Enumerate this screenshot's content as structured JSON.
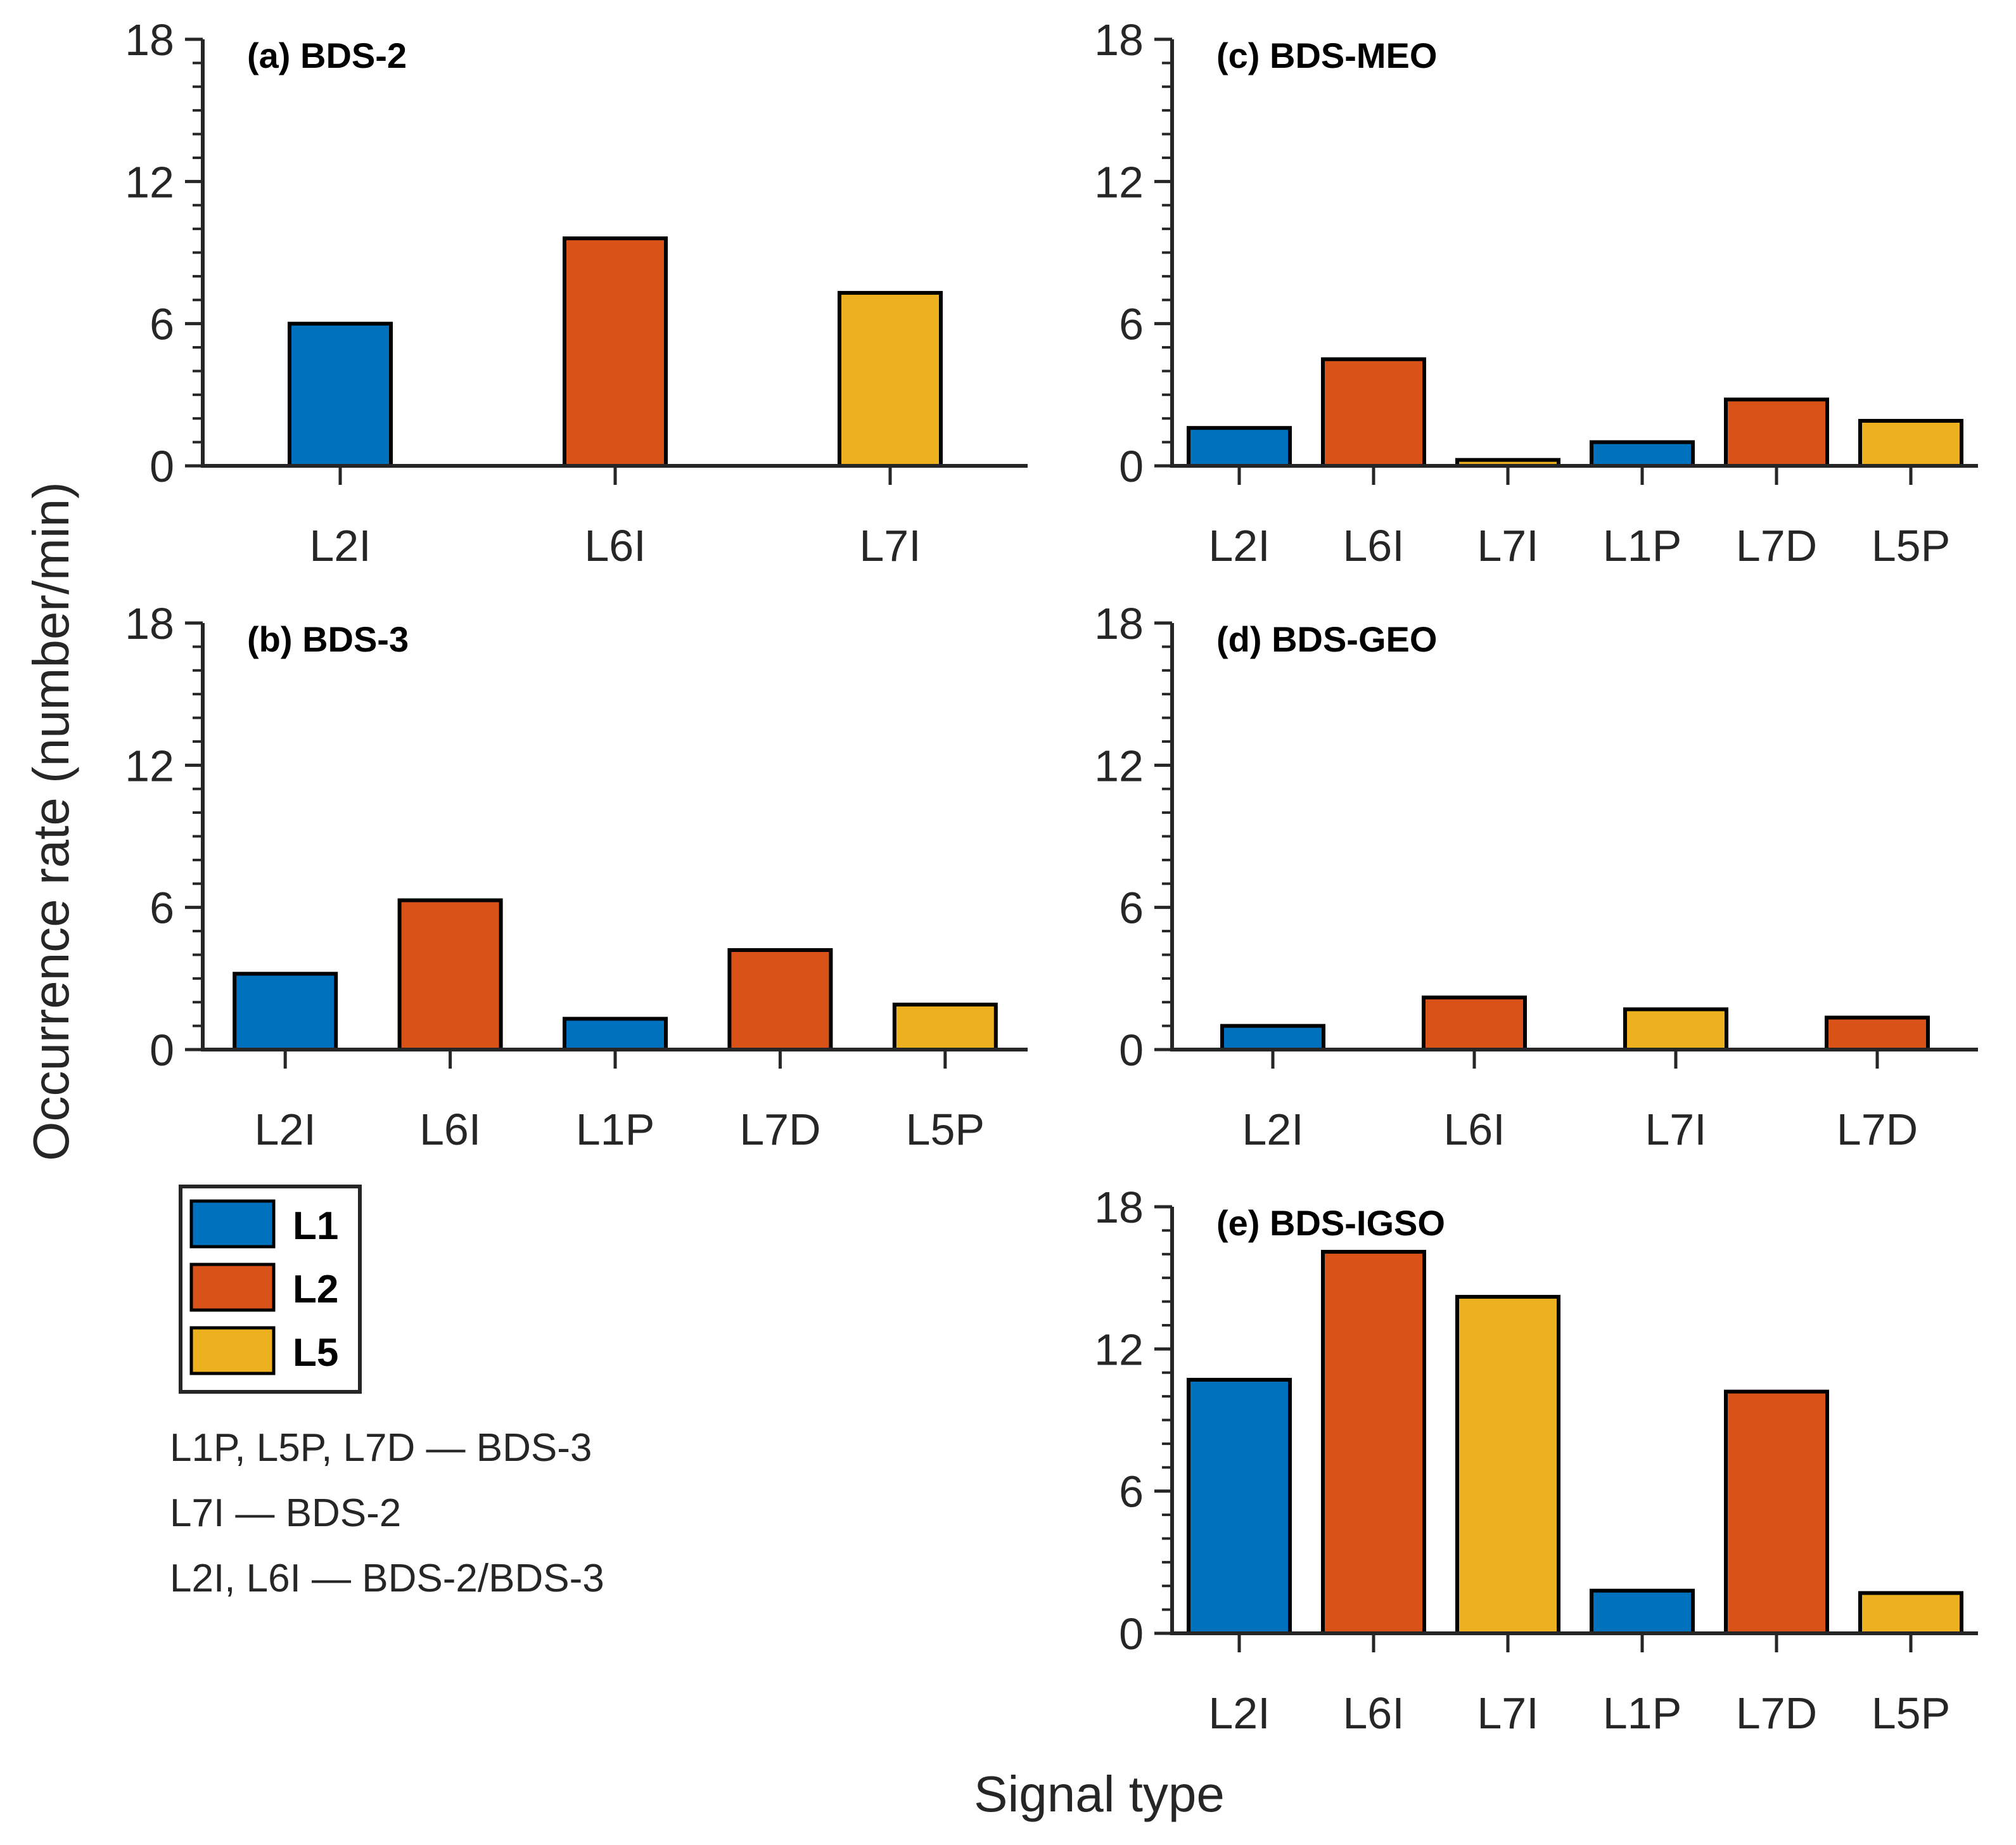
{
  "colors": {
    "L1": "#0072BD",
    "L2": "#D95319",
    "L5": "#EDB120",
    "axis": "#262626",
    "edge": "#000000"
  },
  "chart_data": {
    "type": "bar",
    "xlabel": "Signal type",
    "ylabel": "Occurrence rate (number/min)",
    "ylim": [
      0,
      18
    ],
    "yticks": [
      "0",
      "6",
      "12",
      "18"
    ],
    "legend": {
      "placement": "bottom-left",
      "entries": [
        {
          "label": "L1",
          "color": "#0072BD"
        },
        {
          "label": "L2",
          "color": "#D95319"
        },
        {
          "label": "L5",
          "color": "#EDB120"
        }
      ]
    },
    "notes": [
      "L1P, L5P, L7D — BDS-3",
      "L7I — BDS-2",
      "L2I, L6I — BDS-2/BDS-3"
    ],
    "panels": [
      {
        "id": "a",
        "title": "(a) BDS-2",
        "categories": [
          "L2I",
          "L6I",
          "L7I"
        ],
        "values": [
          6.0,
          9.6,
          7.3
        ],
        "bands": [
          "L1",
          "L2",
          "L5"
        ]
      },
      {
        "id": "b",
        "title": "(b) BDS-3",
        "categories": [
          "L2I",
          "L6I",
          "L1P",
          "L7D",
          "L5P"
        ],
        "values": [
          3.2,
          6.3,
          1.3,
          4.2,
          1.9
        ],
        "bands": [
          "L1",
          "L2",
          "L1",
          "L2",
          "L5"
        ]
      },
      {
        "id": "c",
        "title": "(c) BDS-MEO",
        "categories": [
          "L2I",
          "L6I",
          "L7I",
          "L1P",
          "L7D",
          "L5P"
        ],
        "values": [
          1.6,
          4.5,
          0.25,
          1.0,
          2.8,
          1.9
        ],
        "bands": [
          "L1",
          "L2",
          "L5",
          "L1",
          "L2",
          "L5"
        ]
      },
      {
        "id": "d",
        "title": "(d) BDS-GEO",
        "categories": [
          "L2I",
          "L6I",
          "L7I",
          "L7D"
        ],
        "values": [
          1.0,
          2.2,
          1.7,
          1.35
        ],
        "bands": [
          "L1",
          "L2",
          "L5",
          "L2"
        ]
      },
      {
        "id": "e",
        "title": "(e) BDS-IGSO",
        "categories": [
          "L2I",
          "L6I",
          "L7I",
          "L1P",
          "L7D",
          "L5P"
        ],
        "values": [
          10.7,
          16.1,
          14.2,
          1.8,
          10.2,
          1.7
        ],
        "bands": [
          "L1",
          "L2",
          "L5",
          "L1",
          "L2",
          "L5"
        ]
      }
    ]
  }
}
